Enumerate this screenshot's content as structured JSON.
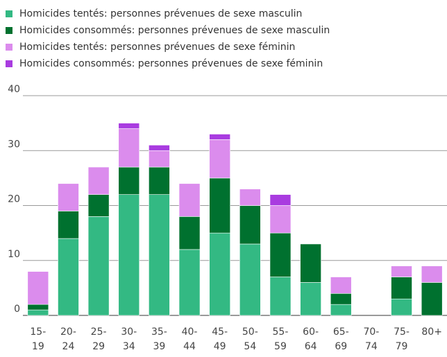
{
  "chart_data": {
    "type": "stacked_bar",
    "categories": [
      [
        "15-",
        "19"
      ],
      [
        "20-",
        "24"
      ],
      [
        "25-",
        "29"
      ],
      [
        "30-",
        "34"
      ],
      [
        "35-",
        "39"
      ],
      [
        "40-",
        "44"
      ],
      [
        "45-",
        "49"
      ],
      [
        "50-",
        "54"
      ],
      [
        "55-",
        "59"
      ],
      [
        "60-",
        "64"
      ],
      [
        "65-",
        "69"
      ],
      [
        "70-",
        "74"
      ],
      [
        "75-",
        "79"
      ],
      [
        "80+"
      ]
    ],
    "series": [
      {
        "name": "Homicides tentés: personnes prévenues de sexe masculin",
        "color": "#33b983",
        "values": [
          1,
          14,
          18,
          22,
          22,
          12,
          15,
          13,
          7,
          6,
          2,
          0,
          3,
          0
        ]
      },
      {
        "name": "Homicides consommés: personnes prévenues de sexe masculin",
        "color": "#00712f",
        "values": [
          1,
          5,
          4,
          5,
          5,
          6,
          10,
          7,
          8,
          7,
          2,
          0,
          4,
          6
        ]
      },
      {
        "name": "Homicides tentés: personnes prévenues de sexe féminin",
        "color": "#db8ced",
        "values": [
          6,
          5,
          5,
          7,
          3,
          6,
          7,
          3,
          5,
          0,
          3,
          0,
          2,
          3
        ]
      },
      {
        "name": "Homicides consommés: personnes prévenues de sexe féminin",
        "color": "#a93ce0",
        "values": [
          0,
          0,
          0,
          1,
          1,
          0,
          1,
          0,
          2,
          0,
          0,
          0,
          0,
          0
        ]
      }
    ],
    "ylim": [
      0,
      40
    ],
    "yticks": [
      0,
      10,
      20,
      30,
      40
    ],
    "grid": true
  }
}
